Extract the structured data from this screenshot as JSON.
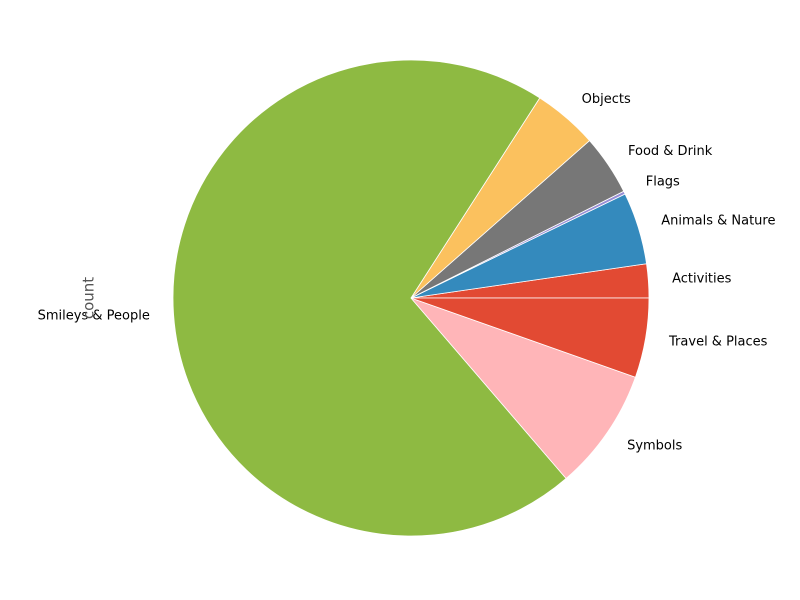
{
  "chart_data": {
    "type": "pie",
    "title": "",
    "ylabel": "count",
    "start_angle_deg": 0,
    "direction": "counterclockwise",
    "slices": [
      {
        "label": "Activities",
        "value": 2.3,
        "color": "#E24A33"
      },
      {
        "label": "Animals & Nature",
        "value": 4.9,
        "color": "#348ABD"
      },
      {
        "label": "Flags",
        "value": 0.2,
        "color": "#988ED5"
      },
      {
        "label": "Food & Drink",
        "value": 4.1,
        "color": "#777777"
      },
      {
        "label": "Objects",
        "value": 4.4,
        "color": "#FBC15E"
      },
      {
        "label": "Smileys & People",
        "value": 70.4,
        "color": "#8EBA42"
      },
      {
        "label": "Symbols",
        "value": 8.3,
        "color": "#FFB5B8"
      },
      {
        "label": "Travel & Places",
        "value": 5.4,
        "color": "#E24A33"
      }
    ]
  }
}
